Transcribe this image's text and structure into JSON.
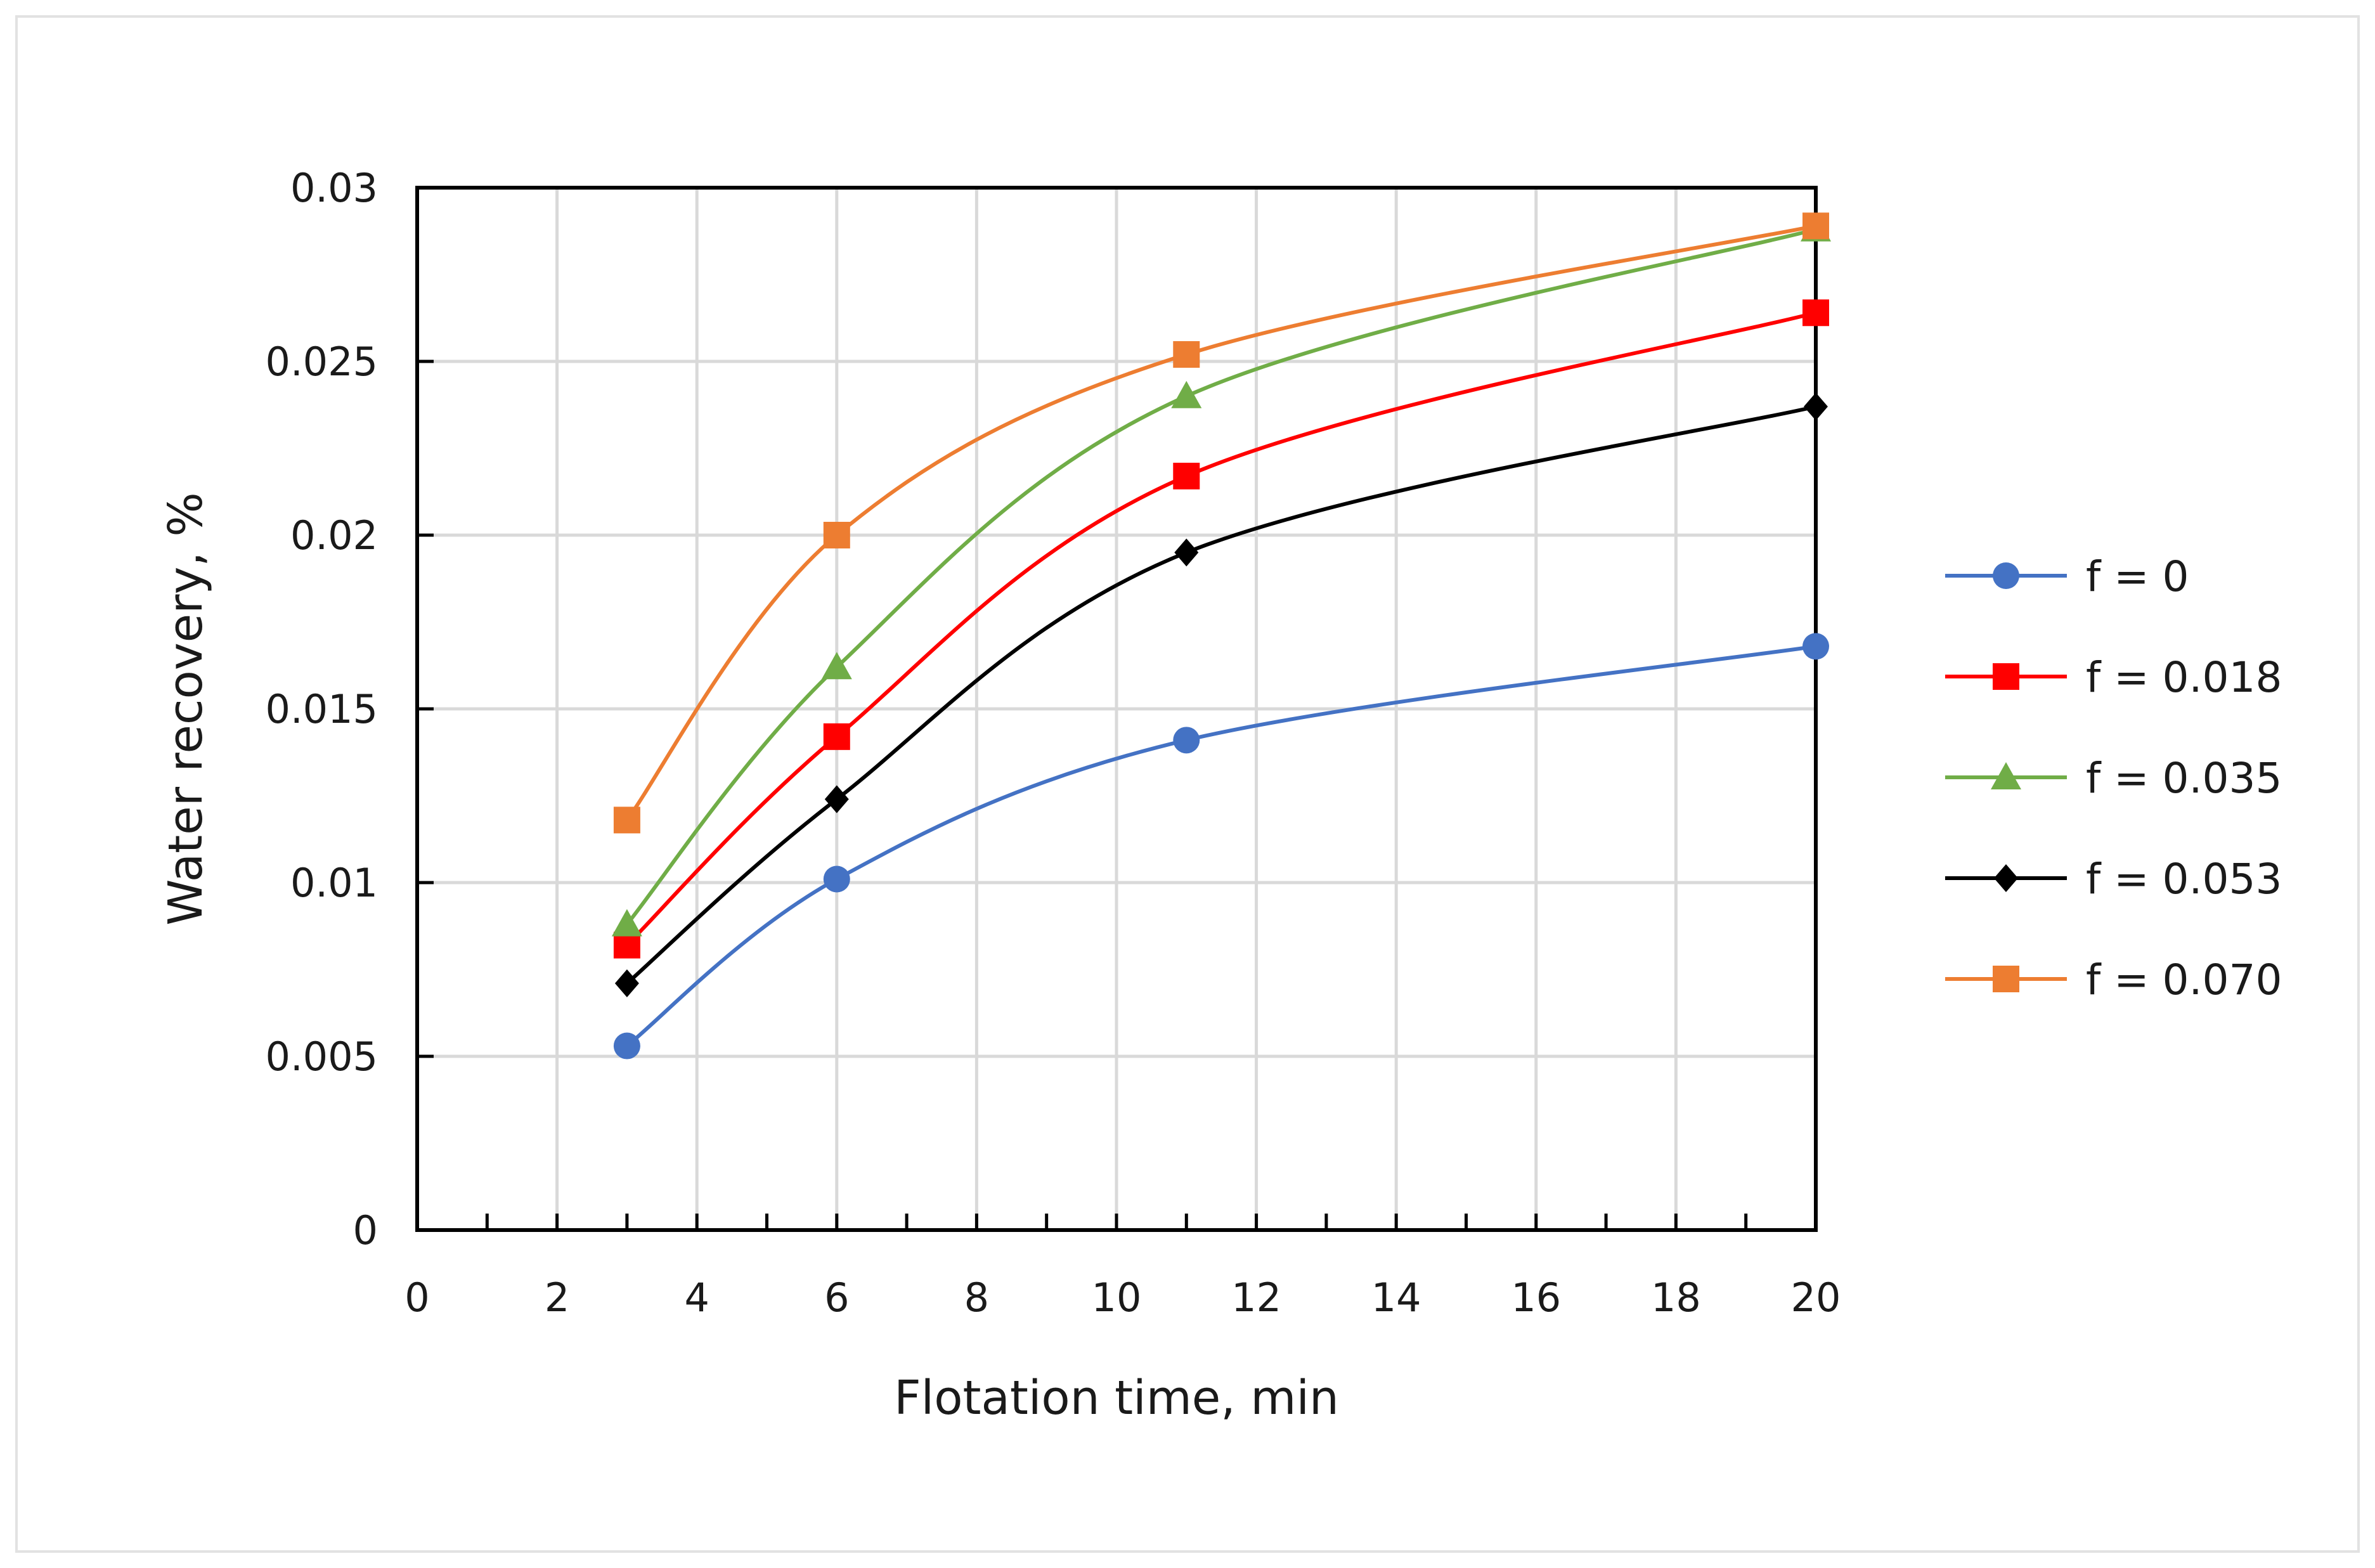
{
  "chart_data": {
    "type": "line",
    "title": "",
    "xlabel": "Flotation time, min",
    "ylabel": "Water recovery, %",
    "xlim": [
      0,
      20
    ],
    "ylim": [
      0,
      0.03
    ],
    "grid": true,
    "smooth": true,
    "legend_position": "right",
    "x_ticks": [
      0,
      2,
      4,
      6,
      8,
      10,
      12,
      14,
      16,
      18,
      20
    ],
    "x_tick_labels": [
      "0",
      "2",
      "4",
      "6",
      "8",
      "10",
      "12",
      "14",
      "16",
      "18",
      "20"
    ],
    "y_ticks": [
      0,
      0.005,
      0.01,
      0.015,
      0.02,
      0.025,
      0.03
    ],
    "y_tick_labels": [
      "0",
      "0.005",
      "0.01",
      "0.015",
      "0.02",
      "0.025",
      "0.03"
    ],
    "x": [
      3,
      6,
      11,
      20
    ],
    "series": [
      {
        "name": "f = 0",
        "color": "#4472c4",
        "marker": "circle",
        "values": [
          0.0053,
          0.0101,
          0.0141,
          0.0168
        ]
      },
      {
        "name": "f = 0.018",
        "color": "#ff0000",
        "marker": "square",
        "values": [
          0.0082,
          0.0142,
          0.0217,
          0.0264
        ]
      },
      {
        "name": "f = 0.035",
        "color": "#70ad47",
        "marker": "triangle",
        "values": [
          0.0088,
          0.0162,
          0.024,
          0.0288
        ]
      },
      {
        "name": "f = 0.053",
        "color": "#000000",
        "marker": "diamond",
        "values": [
          0.0071,
          0.0124,
          0.0195,
          0.0237
        ]
      },
      {
        "name": "f = 0.070",
        "color": "#ed7d31",
        "marker": "square",
        "values": [
          0.0118,
          0.02,
          0.0252,
          0.0289
        ]
      }
    ]
  }
}
